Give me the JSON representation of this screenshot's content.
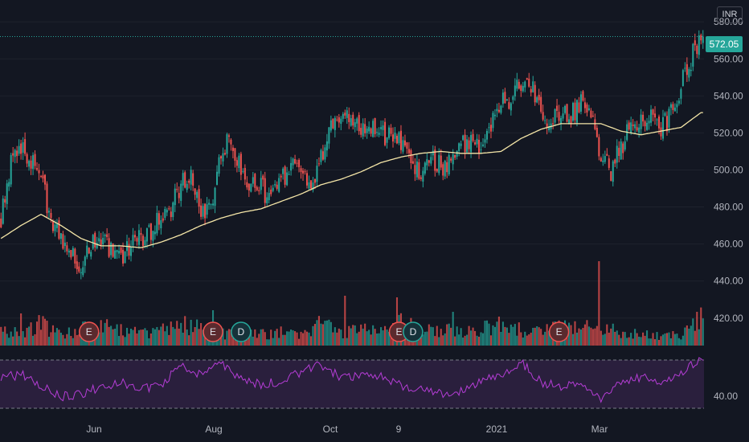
{
  "currency": "INR",
  "last_price_label": "572.05",
  "colors": {
    "background": "#131722",
    "up": "#26a69a",
    "down": "#ef5350",
    "ma_line": "#f5e6a8",
    "rsi_line": "#b53dd6",
    "rsi_band": "#2a1f3d",
    "event_badge": "#5b2a2e",
    "grid": "#1e222d"
  },
  "chart_data": [
    {
      "type": "candlestick",
      "price_axis": {
        "ticks": [
          420,
          440,
          460,
          480,
          500,
          520,
          540,
          560,
          580
        ],
        "tick_labels": [
          "420.00",
          "440.00",
          "460.00",
          "480.00",
          "500.00",
          "520.00",
          "540.00",
          "560.00",
          "580.00"
        ],
        "range": [
          406,
          584
        ]
      },
      "time_axis": {
        "labels": [
          "Jun",
          "Aug",
          "Oct",
          "9",
          "2021",
          "Mar"
        ]
      },
      "last_price": 572.05,
      "moving_average_anchors": [
        [
          0,
          463
        ],
        [
          10,
          470
        ],
        [
          20,
          476
        ],
        [
          30,
          470
        ],
        [
          40,
          463
        ],
        [
          50,
          459
        ],
        [
          60,
          459
        ],
        [
          70,
          458
        ],
        [
          80,
          461
        ],
        [
          90,
          465
        ],
        [
          100,
          470
        ],
        [
          110,
          474
        ],
        [
          120,
          477
        ],
        [
          130,
          479
        ],
        [
          140,
          483
        ],
        [
          150,
          487
        ],
        [
          160,
          492
        ],
        [
          170,
          495
        ],
        [
          180,
          499
        ],
        [
          190,
          504
        ],
        [
          200,
          507
        ],
        [
          210,
          509
        ],
        [
          220,
          510
        ],
        [
          230,
          509
        ],
        [
          240,
          509
        ],
        [
          250,
          510
        ],
        [
          260,
          517
        ],
        [
          270,
          522
        ],
        [
          280,
          525
        ],
        [
          290,
          525
        ],
        [
          300,
          525
        ],
        [
          310,
          521
        ],
        [
          320,
          519
        ],
        [
          330,
          521
        ],
        [
          340,
          523
        ],
        [
          350,
          531
        ]
      ],
      "price_anchors": [
        [
          0,
          475
        ],
        [
          5,
          505
        ],
        [
          10,
          512
        ],
        [
          15,
          505
        ],
        [
          20,
          497
        ],
        [
          25,
          470
        ],
        [
          30,
          462
        ],
        [
          35,
          455
        ],
        [
          40,
          448
        ],
        [
          45,
          460
        ],
        [
          50,
          463
        ],
        [
          55,
          455
        ],
        [
          60,
          450
        ],
        [
          65,
          460
        ],
        [
          70,
          462
        ],
        [
          75,
          465
        ],
        [
          80,
          475
        ],
        [
          85,
          480
        ],
        [
          90,
          493
        ],
        [
          95,
          495
        ],
        [
          100,
          475
        ],
        [
          105,
          482
        ],
        [
          110,
          510
        ],
        [
          115,
          516
        ],
        [
          120,
          502
        ],
        [
          125,
          492
        ],
        [
          130,
          490
        ],
        [
          135,
          485
        ],
        [
          140,
          493
        ],
        [
          145,
          505
        ],
        [
          150,
          500
        ],
        [
          155,
          487
        ],
        [
          160,
          505
        ],
        [
          165,
          525
        ],
        [
          170,
          530
        ],
        [
          175,
          528
        ],
        [
          180,
          520
        ],
        [
          185,
          525
        ],
        [
          190,
          518
        ],
        [
          195,
          520
        ],
        [
          200,
          514
        ],
        [
          205,
          505
        ],
        [
          210,
          500
        ],
        [
          215,
          505
        ],
        [
          220,
          502
        ],
        [
          225,
          505
        ],
        [
          230,
          515
        ],
        [
          235,
          515
        ],
        [
          240,
          515
        ],
        [
          245,
          525
        ],
        [
          250,
          535
        ],
        [
          255,
          540
        ],
        [
          260,
          548
        ],
        [
          265,
          545
        ],
        [
          270,
          535
        ],
        [
          275,
          525
        ],
        [
          280,
          530
        ],
        [
          285,
          530
        ],
        [
          290,
          535
        ],
        [
          295,
          530
        ],
        [
          300,
          505
        ],
        [
          305,
          500
        ],
        [
          310,
          512
        ],
        [
          315,
          525
        ],
        [
          320,
          528
        ],
        [
          325,
          530
        ],
        [
          330,
          522
        ],
        [
          335,
          530
        ],
        [
          340,
          545
        ],
        [
          345,
          560
        ],
        [
          350,
          572.05
        ]
      ],
      "volume_anchors": [
        [
          0,
          18
        ],
        [
          10,
          17
        ],
        [
          20,
          28
        ],
        [
          30,
          12
        ],
        [
          40,
          20
        ],
        [
          50,
          22
        ],
        [
          60,
          22
        ],
        [
          70,
          16
        ],
        [
          80,
          18
        ],
        [
          90,
          28
        ],
        [
          100,
          22
        ],
        [
          110,
          15
        ],
        [
          120,
          14
        ],
        [
          130,
          14
        ],
        [
          140,
          16
        ],
        [
          150,
          12
        ],
        [
          160,
          28
        ],
        [
          170,
          16
        ],
        [
          180,
          18
        ],
        [
          190,
          22
        ],
        [
          200,
          28
        ],
        [
          210,
          20
        ],
        [
          220,
          18
        ],
        [
          230,
          20
        ],
        [
          240,
          18
        ],
        [
          250,
          32
        ],
        [
          260,
          18
        ],
        [
          270,
          18
        ],
        [
          280,
          22
        ],
        [
          290,
          20
        ],
        [
          300,
          26
        ],
        [
          310,
          14
        ],
        [
          320,
          14
        ],
        [
          330,
          12
        ],
        [
          340,
          12
        ],
        [
          350,
          36
        ]
      ],
      "volume_spikes": {
        "10": 40,
        "106": 44,
        "172": 62,
        "198": 60,
        "226": 42,
        "299": 105
      },
      "events": [
        {
          "label": "E",
          "x_index": 44
        },
        {
          "label": "E",
          "x_index": 106
        },
        {
          "label": "D",
          "x_index": 120
        },
        {
          "label": "E",
          "x_index": 199
        },
        {
          "label": "D",
          "x_index": 206
        },
        {
          "label": "E",
          "x_index": 279
        }
      ],
      "rsi": {
        "tick_labels": [
          "40.00"
        ],
        "upper_band": 70,
        "lower_band": 30,
        "anchors": [
          [
            0,
            55
          ],
          [
            10,
            58
          ],
          [
            20,
            48
          ],
          [
            30,
            40
          ],
          [
            40,
            42
          ],
          [
            50,
            48
          ],
          [
            60,
            52
          ],
          [
            70,
            45
          ],
          [
            80,
            50
          ],
          [
            90,
            65
          ],
          [
            100,
            58
          ],
          [
            110,
            66
          ],
          [
            120,
            55
          ],
          [
            130,
            50
          ],
          [
            140,
            52
          ],
          [
            150,
            60
          ],
          [
            160,
            66
          ],
          [
            170,
            55
          ],
          [
            180,
            56
          ],
          [
            190,
            58
          ],
          [
            200,
            48
          ],
          [
            210,
            46
          ],
          [
            220,
            42
          ],
          [
            230,
            44
          ],
          [
            240,
            52
          ],
          [
            250,
            58
          ],
          [
            260,
            68
          ],
          [
            270,
            52
          ],
          [
            280,
            48
          ],
          [
            290,
            52
          ],
          [
            300,
            35
          ],
          [
            310,
            52
          ],
          [
            320,
            56
          ],
          [
            330,
            50
          ],
          [
            340,
            60
          ],
          [
            350,
            72
          ]
        ]
      },
      "bars": 352
    }
  ]
}
